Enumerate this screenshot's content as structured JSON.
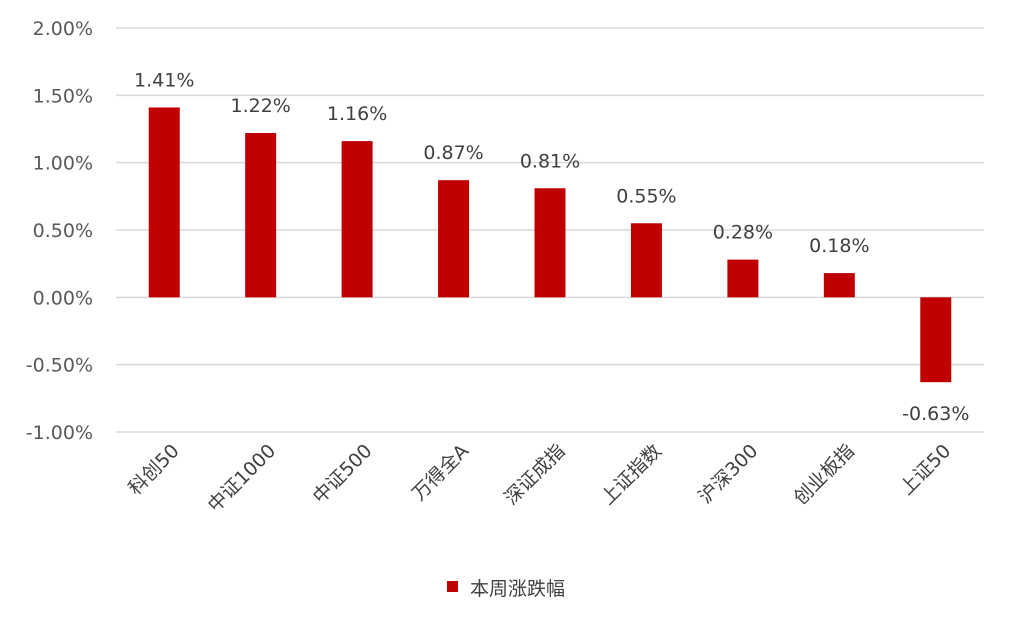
{
  "chart_data": {
    "type": "bar",
    "categories": [
      "科创50",
      "中证1000",
      "中证500",
      "万得全A",
      "深证成指",
      "上证指数",
      "沪深300",
      "创业板指",
      "上证50"
    ],
    "series": [
      {
        "name": "本周涨跌幅",
        "values": [
          1.41,
          1.22,
          1.16,
          0.87,
          0.81,
          0.55,
          0.28,
          0.18,
          -0.63
        ]
      }
    ],
    "data_labels": [
      "1.41%",
      "1.22%",
      "1.16%",
      "0.87%",
      "0.81%",
      "0.55%",
      "0.28%",
      "0.18%",
      "-0.63%"
    ],
    "yticks": [
      "2.00%",
      "1.50%",
      "1.00%",
      "0.50%",
      "0.00%",
      "-0.50%",
      "-1.00%"
    ],
    "ylim": [
      -1.0,
      2.0
    ],
    "grid": true,
    "legend_position": "bottom",
    "color": "#c00000"
  }
}
